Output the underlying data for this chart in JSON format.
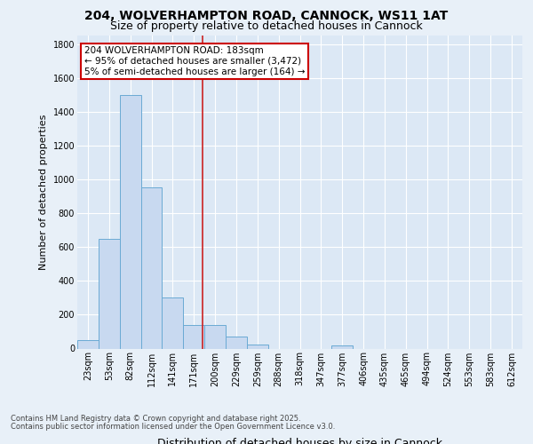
{
  "title1": "204, WOLVERHAMPTON ROAD, CANNOCK, WS11 1AT",
  "title2": "Size of property relative to detached houses in Cannock",
  "xlabel": "Distribution of detached houses by size in Cannock",
  "ylabel": "Number of detached properties",
  "bin_labels": [
    "23sqm",
    "53sqm",
    "82sqm",
    "112sqm",
    "141sqm",
    "171sqm",
    "200sqm",
    "229sqm",
    "259sqm",
    "288sqm",
    "318sqm",
    "347sqm",
    "377sqm",
    "406sqm",
    "435sqm",
    "465sqm",
    "494sqm",
    "524sqm",
    "553sqm",
    "583sqm",
    "612sqm"
  ],
  "bar_heights": [
    50,
    650,
    1500,
    950,
    300,
    140,
    140,
    70,
    25,
    0,
    0,
    0,
    20,
    0,
    0,
    0,
    0,
    0,
    0,
    0,
    0
  ],
  "bar_color": "#c8d9f0",
  "bar_edge_color": "#6aaad4",
  "vline_color": "#cc2222",
  "vline_x": 5.41,
  "annotation_text": "204 WOLVERHAMPTON ROAD: 183sqm\n← 95% of detached houses are smaller (3,472)\n5% of semi-detached houses are larger (164) →",
  "annotation_box_color": "#ffffff",
  "annotation_box_edge": "#cc0000",
  "ylim": [
    0,
    1850
  ],
  "yticks": [
    0,
    200,
    400,
    600,
    800,
    1000,
    1200,
    1400,
    1600,
    1800
  ],
  "footer1": "Contains HM Land Registry data © Crown copyright and database right 2025.",
  "footer2": "Contains public sector information licensed under the Open Government Licence v3.0.",
  "bg_color": "#dce8f5",
  "fig_bg_color": "#e8f0f8",
  "title1_fontsize": 10,
  "title2_fontsize": 9,
  "ylabel_fontsize": 8,
  "xlabel_fontsize": 9,
  "tick_fontsize": 7,
  "footer_fontsize": 6,
  "ann_fontsize": 7.5
}
